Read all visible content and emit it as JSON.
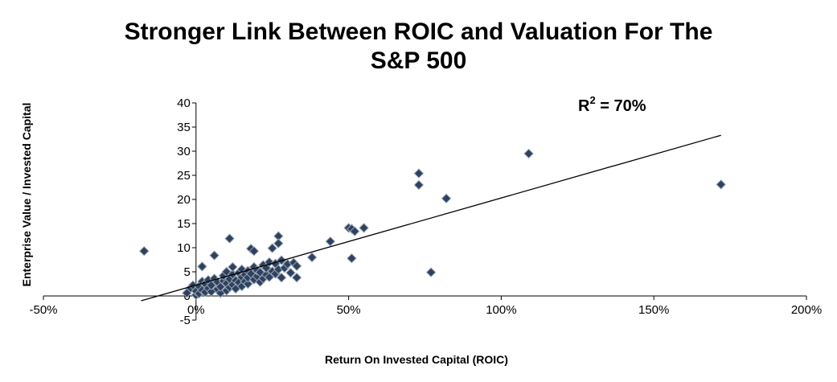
{
  "title": {
    "line1": "Stronger Link Between ROIC and Valuation For The",
    "line2": "S&P 500"
  },
  "annotation": {
    "r2_prefix": "R",
    "r2_sup": "2",
    "r2_value": " = 70%"
  },
  "colors": {
    "marker": "#2d4160",
    "marker_edge": "#9aa3b0",
    "trendline": "#000000"
  },
  "chart_data": {
    "type": "scatter",
    "title": "Stronger Link Between ROIC and Valuation For The S&P 500",
    "xlabel": "Return On Invested Capital (ROIC)",
    "ylabel": "Enterprise Value / Invested Capital",
    "xlim": [
      -0.5,
      2.0
    ],
    "ylim": [
      -5,
      40
    ],
    "x_ticks": [
      -0.5,
      0,
      0.5,
      1.0,
      1.5,
      2.0
    ],
    "x_tick_labels": [
      "-50%",
      "0%",
      "50%",
      "100%",
      "150%",
      "200%"
    ],
    "y_ticks": [
      -5,
      0,
      5,
      10,
      15,
      20,
      25,
      30,
      35,
      40
    ],
    "y_tick_labels": [
      "-5",
      "0",
      "5",
      "10",
      "15",
      "20",
      "25",
      "30",
      "35",
      "40"
    ],
    "grid": false,
    "legend": "none",
    "trendline": {
      "x": [
        -0.18,
        1.72
      ],
      "y": [
        -1.0,
        33.3
      ]
    },
    "points": [
      [
        -0.17,
        9.3
      ],
      [
        -0.02,
        1.5
      ],
      [
        -0.03,
        0.6
      ],
      [
        -0.01,
        2.2
      ],
      [
        0.0,
        0.2
      ],
      [
        0.0,
        1.0
      ],
      [
        0.01,
        0.5
      ],
      [
        0.01,
        2.0
      ],
      [
        0.02,
        1.2
      ],
      [
        0.02,
        3.0
      ],
      [
        0.02,
        6.1
      ],
      [
        0.03,
        0.8
      ],
      [
        0.03,
        2.5
      ],
      [
        0.04,
        1.6
      ],
      [
        0.04,
        3.3
      ],
      [
        0.05,
        0.9
      ],
      [
        0.05,
        2.2
      ],
      [
        0.06,
        8.4
      ],
      [
        0.06,
        3.6
      ],
      [
        0.07,
        1.4
      ],
      [
        0.07,
        2.9
      ],
      [
        0.08,
        0.6
      ],
      [
        0.08,
        1.9
      ],
      [
        0.09,
        3.1
      ],
      [
        0.09,
        4.2
      ],
      [
        0.1,
        1.1
      ],
      [
        0.1,
        2.6
      ],
      [
        0.1,
        5.0
      ],
      [
        0.11,
        11.9
      ],
      [
        0.11,
        1.8
      ],
      [
        0.11,
        3.5
      ],
      [
        0.12,
        2.3
      ],
      [
        0.12,
        4.5
      ],
      [
        0.12,
        6.0
      ],
      [
        0.13,
        1.5
      ],
      [
        0.13,
        3.2
      ],
      [
        0.14,
        2.8
      ],
      [
        0.14,
        4.8
      ],
      [
        0.15,
        2.0
      ],
      [
        0.15,
        3.9
      ],
      [
        0.15,
        5.5
      ],
      [
        0.16,
        3.0
      ],
      [
        0.16,
        4.4
      ],
      [
        0.17,
        2.5
      ],
      [
        0.17,
        3.8
      ],
      [
        0.17,
        5.2
      ],
      [
        0.18,
        9.8
      ],
      [
        0.18,
        4.6
      ],
      [
        0.19,
        3.4
      ],
      [
        0.19,
        9.3
      ],
      [
        0.19,
        6.0
      ],
      [
        0.2,
        4.1
      ],
      [
        0.2,
        5.3
      ],
      [
        0.21,
        2.9
      ],
      [
        0.21,
        4.9
      ],
      [
        0.22,
        3.6
      ],
      [
        0.22,
        6.4
      ],
      [
        0.23,
        4.4
      ],
      [
        0.23,
        5.8
      ],
      [
        0.24,
        3.9
      ],
      [
        0.24,
        7.0
      ],
      [
        0.25,
        5.1
      ],
      [
        0.25,
        9.9
      ],
      [
        0.26,
        4.6
      ],
      [
        0.26,
        6.7
      ],
      [
        0.27,
        12.4
      ],
      [
        0.27,
        10.9
      ],
      [
        0.27,
        5.5
      ],
      [
        0.28,
        3.8
      ],
      [
        0.28,
        7.4
      ],
      [
        0.29,
        5.8
      ],
      [
        0.3,
        6.6
      ],
      [
        0.31,
        4.8
      ],
      [
        0.32,
        6.9
      ],
      [
        0.33,
        3.8
      ],
      [
        0.33,
        6.2
      ],
      [
        0.38,
        8.0
      ],
      [
        0.44,
        11.3
      ],
      [
        0.5,
        14.1
      ],
      [
        0.51,
        7.8
      ],
      [
        0.51,
        13.9
      ],
      [
        0.52,
        13.4
      ],
      [
        0.55,
        14.1
      ],
      [
        0.73,
        25.4
      ],
      [
        0.73,
        23.0
      ],
      [
        0.77,
        4.9
      ],
      [
        0.82,
        20.2
      ],
      [
        1.09,
        29.5
      ],
      [
        1.72,
        23.1
      ]
    ]
  }
}
